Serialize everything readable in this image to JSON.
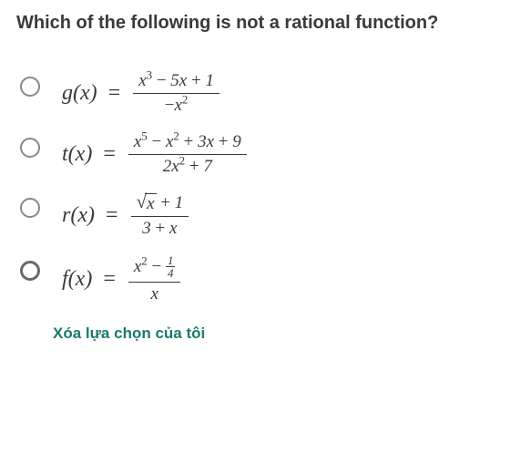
{
  "question": {
    "text": "Which of the following is not a rational function?",
    "color": "#3a3a3a",
    "fontsize": 20
  },
  "options": [
    {
      "id": "opt-g",
      "lhs": "g(x)",
      "numerator": "x³ − 5x + 1",
      "denominator": "−x²",
      "selected": false,
      "radio_style": "normal"
    },
    {
      "id": "opt-t",
      "lhs": "t(x)",
      "numerator": "x⁵ − x² + 3x + 9",
      "denominator": "2x² + 7",
      "selected": false,
      "radio_style": "normal"
    },
    {
      "id": "opt-r",
      "lhs": "r(x)",
      "numerator": "√x + 1",
      "denominator": "3 + x",
      "selected": false,
      "radio_style": "normal"
    },
    {
      "id": "opt-f",
      "lhs": "f(x)",
      "numerator": "x² − ¼",
      "denominator": "x",
      "selected": false,
      "radio_style": "bold"
    }
  ],
  "clear_label": "Xóa lựa chọn của tôi",
  "colors": {
    "text": "#3a3a3a",
    "radio_border": "#888888",
    "link": "#1a7a6f",
    "background": "#ffffff"
  }
}
